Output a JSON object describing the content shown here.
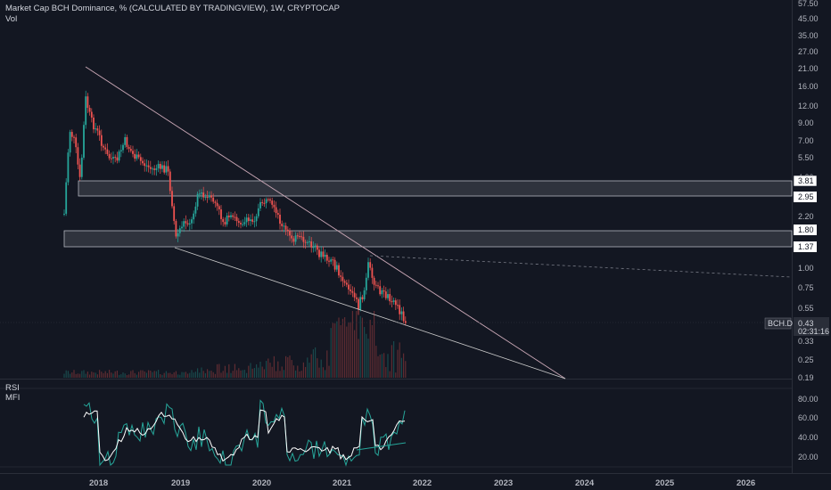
{
  "header": {
    "title": "Market Cap BCH Dominance, % (CALCULATED BY TRADINGVIEW), 1W, CRYPTOCAP",
    "vol_label": "Vol"
  },
  "indicators": {
    "rsi_label": "RSI",
    "mfi_label": "MFI"
  },
  "price_axis": {
    "ticks": [
      "57.50",
      "45.00",
      "35.00",
      "27.00",
      "21.00",
      "16.00",
      "12.00",
      "9.00",
      "7.00",
      "5.50",
      "4.20",
      "2.20",
      "1.30",
      "1.00",
      "0.75",
      "0.55",
      "0.33",
      "0.25",
      "0.19"
    ]
  },
  "price_badges": {
    "upper_top": "3.81",
    "upper_bottom": "2.95",
    "lower_top": "1.80",
    "lower_bottom": "1.37",
    "symbol": "BCH.D",
    "last": "0.43",
    "countdown": "02:31:16"
  },
  "osc_axis": {
    "ticks": [
      "80.00",
      "60.00",
      "40.00",
      "20.00"
    ]
  },
  "time_axis": {
    "labels": [
      "2018",
      "2019",
      "2020",
      "2021",
      "2022",
      "2023",
      "2024",
      "2025",
      "2026"
    ]
  },
  "colors": {
    "background": "#131722",
    "up": "#26a69a",
    "down": "#ef5350",
    "rsi": "#ffffff",
    "mfi": "#26a69a",
    "trendline": "#c9a7b5",
    "zone_fill": "#3a3d47"
  }
}
